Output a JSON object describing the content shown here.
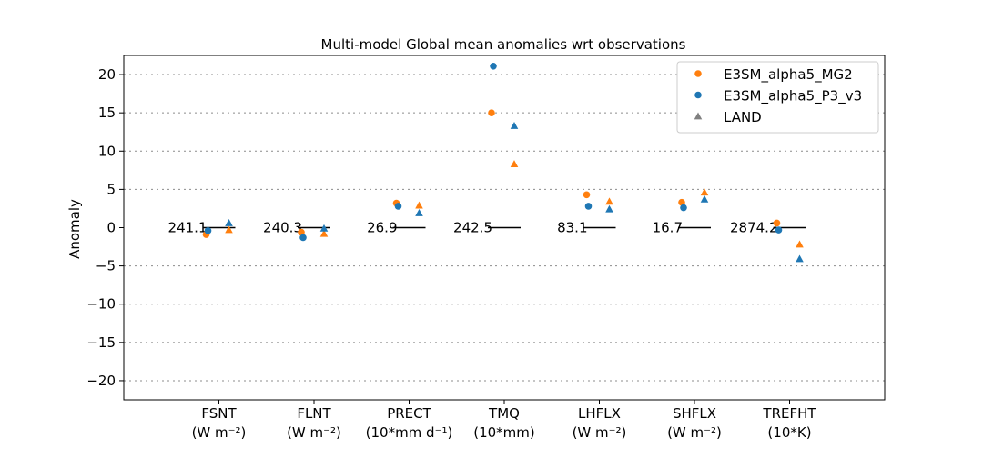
{
  "chart_data": {
    "type": "scatter",
    "title": "Multi-model Global mean anomalies wrt observations",
    "ylabel": "Anomaly",
    "ylim": [
      -22.5,
      22.5
    ],
    "yticks": [
      -20,
      -15,
      -10,
      -5,
      0,
      5,
      10,
      15,
      20
    ],
    "ytick_labels": [
      "−20",
      "−15",
      "−10",
      "−5",
      "0",
      "5",
      "10",
      "15",
      "20"
    ],
    "grid": "dotted horizontal at every 5 except 0",
    "legend_position": "top-right",
    "categories": [
      {
        "name": "FSNT",
        "unit": "(W m⁻²)",
        "reference": "241.1"
      },
      {
        "name": "FLNT",
        "unit": "(W m⁻²)",
        "reference": "240.3"
      },
      {
        "name": "PRECT",
        "unit": "(10*mm d⁻¹)",
        "reference": "26.9"
      },
      {
        "name": "TMQ",
        "unit": "(10*mm)",
        "reference": "242.5"
      },
      {
        "name": "LHFLX",
        "unit": "(W m⁻²)",
        "reference": "83.1"
      },
      {
        "name": "SHFLX",
        "unit": "(W m⁻²)",
        "reference": "16.7"
      },
      {
        "name": "TREFHT",
        "unit": "(10*K)",
        "reference": "2874.2"
      }
    ],
    "series": [
      {
        "name": "E3SM_alpha5_MG2",
        "color": "#ff7f0e",
        "global": [
          -0.9,
          -0.6,
          3.2,
          15.0,
          4.3,
          3.3,
          0.6
        ],
        "land": [
          -0.3,
          -0.8,
          2.9,
          8.3,
          3.4,
          4.6,
          -2.2
        ]
      },
      {
        "name": "E3SM_alpha5_P3_v3",
        "color": "#1f77b4",
        "global": [
          -0.4,
          -1.3,
          2.8,
          21.1,
          2.8,
          2.6,
          -0.3
        ],
        "land": [
          0.6,
          -0.1,
          1.9,
          13.3,
          2.4,
          3.7,
          -4.1
        ]
      }
    ],
    "legend": [
      {
        "label": "E3SM_alpha5_MG2",
        "marker": "circle",
        "color": "#ff7f0e"
      },
      {
        "label": "E3SM_alpha5_P3_v3",
        "marker": "circle",
        "color": "#1f77b4"
      },
      {
        "label": "LAND",
        "marker": "triangle",
        "color": "#808080"
      }
    ]
  }
}
